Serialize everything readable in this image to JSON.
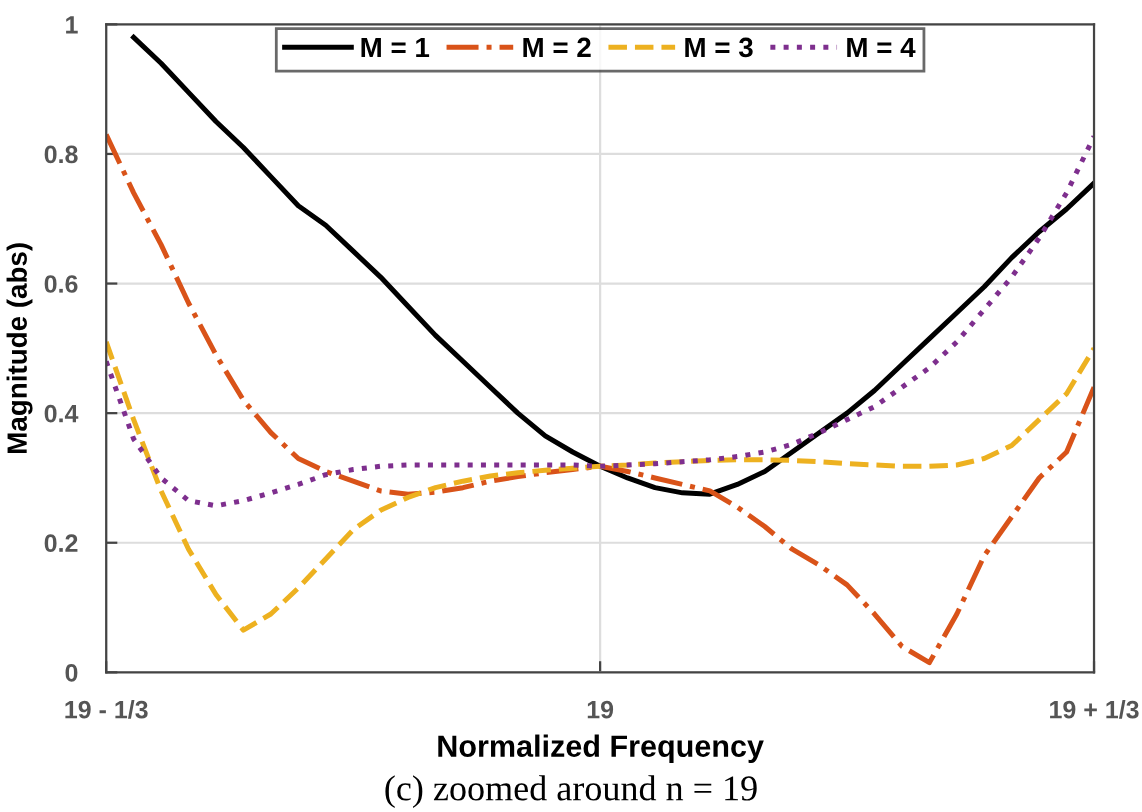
{
  "chart_data": {
    "type": "line",
    "xlabel": "Normalized Frequency",
    "ylabel": "Magnitude (abs)",
    "annotations": [
      "(c) zoomed around n = 19"
    ],
    "categories": [
      "19 - 1/3",
      null,
      null,
      null,
      null,
      null,
      null,
      null,
      null,
      null,
      null,
      null,
      null,
      null,
      null,
      null,
      null,
      null,
      "19",
      null,
      null,
      null,
      null,
      null,
      null,
      null,
      null,
      null,
      null,
      null,
      null,
      null,
      null,
      null,
      null,
      null,
      "19 + 1/3"
    ],
    "ylim": [
      0,
      1
    ],
    "yticks": [
      0,
      0.2,
      0.4,
      0.6,
      0.8,
      1
    ],
    "grid": true,
    "legend": "top",
    "series": [
      {
        "name": "M = 1",
        "color": "#000000",
        "line_style": "solid",
        "values": [
          null,
          0.98,
          0.94,
          0.895,
          0.85,
          0.81,
          0.765,
          0.72,
          0.69,
          0.65,
          0.61,
          0.565,
          0.52,
          0.48,
          0.44,
          0.4,
          0.365,
          0.34,
          0.318,
          0.3,
          0.285,
          0.277,
          0.275,
          0.29,
          0.31,
          0.34,
          0.37,
          0.4,
          0.435,
          0.475,
          0.515,
          0.555,
          0.595,
          0.64,
          0.68,
          0.715,
          0.755
        ]
      },
      {
        "name": "M = 2",
        "color": "#d95319",
        "line_style": "dashdot",
        "values": [
          0.83,
          0.74,
          0.66,
          0.57,
          0.49,
          0.42,
          0.37,
          0.33,
          0.31,
          0.295,
          0.28,
          0.275,
          0.278,
          0.285,
          0.295,
          0.302,
          0.308,
          0.313,
          0.318,
          0.31,
          0.3,
          0.29,
          0.28,
          0.255,
          0.225,
          0.19,
          0.165,
          0.135,
          0.09,
          0.04,
          0.015,
          0.09,
          0.18,
          0.24,
          0.3,
          0.34,
          0.44
        ]
      },
      {
        "name": "M = 3",
        "color": "#edb120",
        "line_style": "dashed",
        "values": [
          0.51,
          0.39,
          0.28,
          0.19,
          0.12,
          0.065,
          0.09,
          0.13,
          0.175,
          0.22,
          0.25,
          0.27,
          0.285,
          0.295,
          0.303,
          0.308,
          0.312,
          0.315,
          0.318,
          0.32,
          0.323,
          0.325,
          0.327,
          0.328,
          0.328,
          0.327,
          0.325,
          0.322,
          0.32,
          0.318,
          0.318,
          0.32,
          0.33,
          0.35,
          0.39,
          0.43,
          0.5
        ]
      },
      {
        "name": "M = 4",
        "color": "#7e2f8e",
        "line_style": "dotted",
        "values": [
          0.48,
          0.36,
          0.3,
          0.265,
          0.257,
          0.265,
          0.277,
          0.29,
          0.305,
          0.313,
          0.318,
          0.32,
          0.32,
          0.32,
          0.32,
          0.32,
          0.32,
          0.32,
          0.318,
          0.32,
          0.322,
          0.325,
          0.328,
          0.333,
          0.34,
          0.352,
          0.37,
          0.39,
          0.41,
          0.44,
          0.47,
          0.51,
          0.56,
          0.61,
          0.67,
          0.74,
          0.827
        ]
      }
    ]
  }
}
